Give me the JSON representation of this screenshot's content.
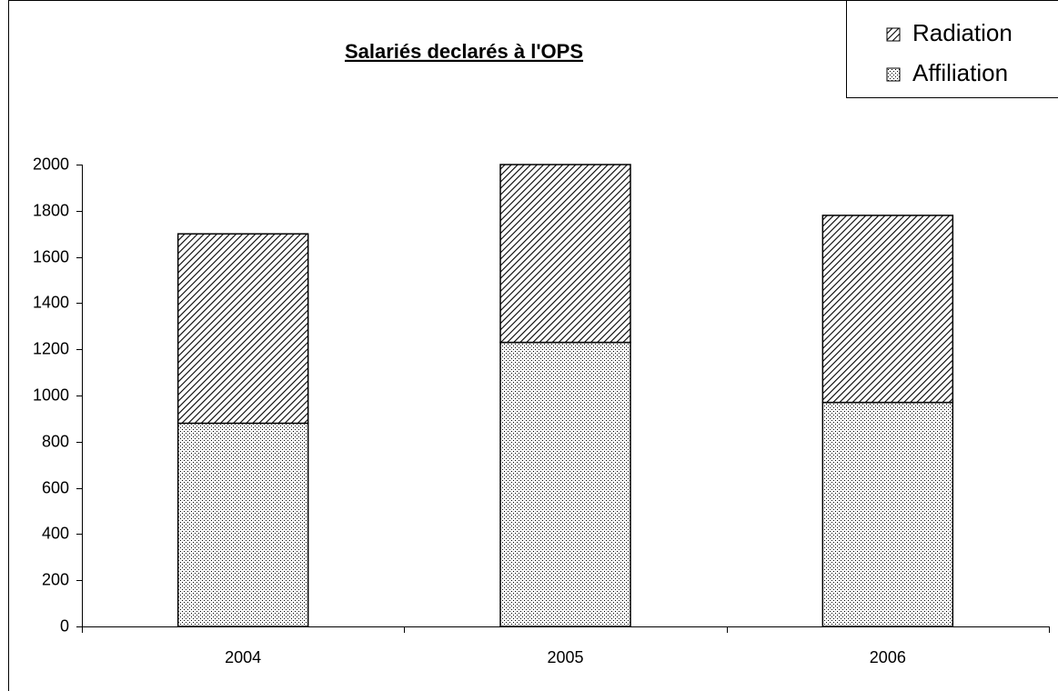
{
  "chart_data": {
    "type": "stacked_bar",
    "title": "Salariés declarés à l'OPS",
    "categories": [
      "2004",
      "2005",
      "2006"
    ],
    "series": [
      {
        "name": "Affiliation",
        "color": "#000000",
        "pattern": "dots",
        "values": [
          880,
          1230,
          970
        ]
      },
      {
        "name": "Radiation",
        "color": "#000000",
        "pattern": "hatch",
        "values": [
          820,
          770,
          810
        ]
      }
    ],
    "ylim": [
      0,
      2000
    ],
    "yticks": [
      0,
      200,
      400,
      600,
      800,
      1000,
      1200,
      1400,
      1600,
      1800,
      2000
    ],
    "legend": "top-right"
  }
}
